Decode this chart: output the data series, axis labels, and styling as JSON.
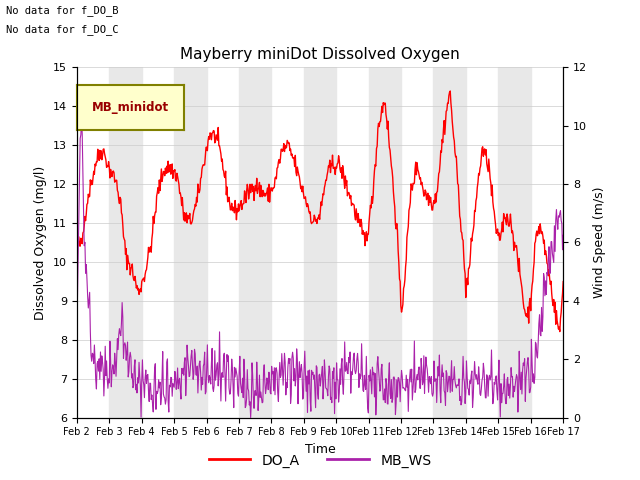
{
  "title": "Mayberry miniDot Dissolved Oxygen",
  "xlabel": "Time",
  "ylabel_left": "Dissolved Oxygen (mg/l)",
  "ylabel_right": "Wind Speed (m/s)",
  "ylim_left": [
    6.0,
    15.0
  ],
  "ylim_right": [
    0,
    12
  ],
  "yticks_left": [
    6.0,
    7.0,
    8.0,
    9.0,
    10.0,
    11.0,
    12.0,
    13.0,
    14.0,
    15.0
  ],
  "yticks_right": [
    0,
    2,
    4,
    6,
    8,
    10,
    12
  ],
  "annotations": [
    "No data for f_DO_B",
    "No data for f_DO_C"
  ],
  "legend_label": "MB_minidot",
  "legend_box_color": "#ffffcc",
  "legend_text_color": "#990000",
  "do_color": "#ff0000",
  "ws_color": "#aa22aa",
  "background_band_color": "#e8e8e8",
  "grid_color": "#cccccc",
  "seed": 42
}
